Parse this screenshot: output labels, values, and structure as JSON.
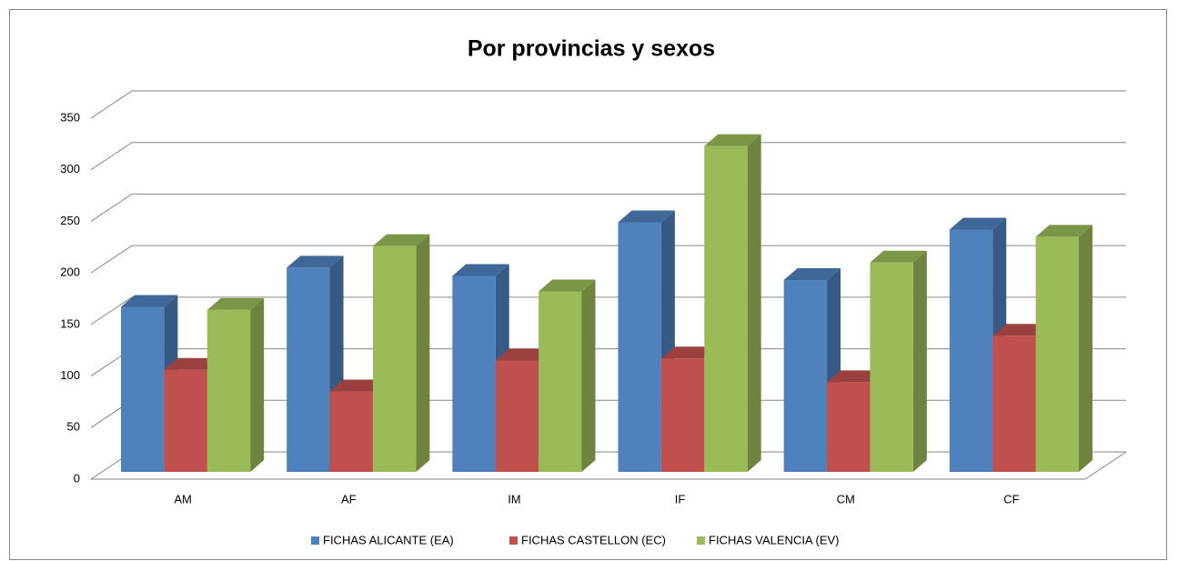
{
  "chart_data": {
    "type": "bar3d",
    "title": "Por provincias y sexos",
    "categories": [
      "AM",
      "AF",
      "IM",
      "IF",
      "CM",
      "CF"
    ],
    "series": [
      {
        "name": "FICHAS ALICANTE (EA)",
        "color": "#4f81bd",
        "values": [
          160,
          198,
          190,
          242,
          186,
          235
        ]
      },
      {
        "name": "FICHAS CASTELLON (EC)",
        "color": "#c0504d",
        "values": [
          99,
          78,
          108,
          110,
          87,
          132
        ]
      },
      {
        "name": "FICHAS VALENCIA (EV)",
        "color": "#9bbb59",
        "values": [
          157,
          219,
          175,
          316,
          203,
          228
        ]
      }
    ],
    "ylim": [
      0,
      350
    ],
    "yticks": [
      0,
      50,
      100,
      150,
      200,
      250,
      300,
      350
    ],
    "grid": true,
    "legend": "bottom"
  }
}
